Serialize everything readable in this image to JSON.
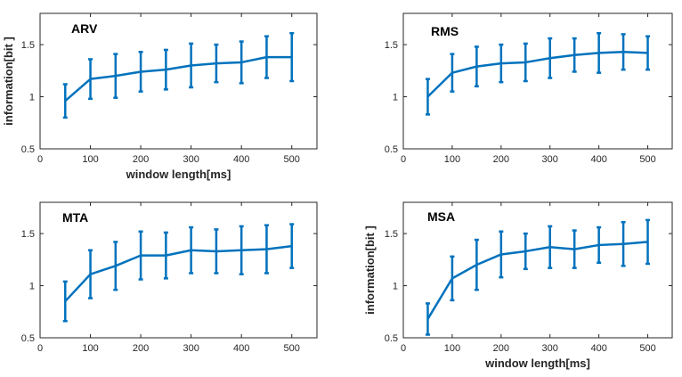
{
  "colors": {
    "line": "#0072BD",
    "axis": "#262626",
    "background": "#ffffff"
  },
  "chart_data": [
    {
      "type": "line",
      "title": "ARV",
      "xlabel": "window length[ms]",
      "ylabel": "information[bit ]",
      "xlim": [
        0,
        550
      ],
      "ylim": [
        0.5,
        1.8
      ],
      "xticks": [
        "0",
        "100",
        "200",
        "300",
        "400",
        "500"
      ],
      "yticks": [
        "0.5",
        "1",
        "1.5"
      ],
      "grid": false,
      "x": [
        50,
        100,
        150,
        200,
        250,
        300,
        350,
        400,
        450,
        500
      ],
      "y": [
        0.96,
        1.17,
        1.2,
        1.24,
        1.26,
        1.3,
        1.32,
        1.33,
        1.38,
        1.38
      ],
      "error": [
        0.16,
        0.19,
        0.21,
        0.19,
        0.19,
        0.21,
        0.18,
        0.2,
        0.2,
        0.23
      ]
    },
    {
      "type": "line",
      "title": "RMS",
      "xlabel": "",
      "ylabel": "",
      "xlim": [
        0,
        550
      ],
      "ylim": [
        0.5,
        1.8
      ],
      "xticks": [
        "0",
        "100",
        "200",
        "300",
        "400",
        "500"
      ],
      "yticks": [
        "0.5",
        "1",
        "1.5"
      ],
      "grid": false,
      "x": [
        50,
        100,
        150,
        200,
        250,
        300,
        350,
        400,
        450,
        500
      ],
      "y": [
        1.0,
        1.23,
        1.29,
        1.32,
        1.33,
        1.37,
        1.4,
        1.42,
        1.43,
        1.42
      ],
      "error": [
        0.17,
        0.18,
        0.19,
        0.18,
        0.18,
        0.19,
        0.16,
        0.19,
        0.17,
        0.16
      ]
    },
    {
      "type": "line",
      "title": "MTA",
      "xlabel": "",
      "ylabel": "",
      "xlim": [
        0,
        550
      ],
      "ylim": [
        0.5,
        1.8
      ],
      "xticks": [
        "0",
        "100",
        "200",
        "300",
        "400",
        "500"
      ],
      "yticks": [
        "0.5",
        "1",
        "1.5"
      ],
      "grid": false,
      "x": [
        50,
        100,
        150,
        200,
        250,
        300,
        350,
        400,
        450,
        500
      ],
      "y": [
        0.85,
        1.11,
        1.19,
        1.29,
        1.29,
        1.34,
        1.33,
        1.34,
        1.35,
        1.38
      ],
      "error": [
        0.19,
        0.23,
        0.23,
        0.23,
        0.22,
        0.22,
        0.21,
        0.23,
        0.23,
        0.21
      ]
    },
    {
      "type": "line",
      "title": "MSA",
      "xlabel": "window length[ms]",
      "ylabel": "information[bit ]",
      "xlim": [
        0,
        550
      ],
      "ylim": [
        0.5,
        1.8
      ],
      "xticks": [
        "0",
        "100",
        "200",
        "300",
        "400",
        "500"
      ],
      "yticks": [
        "0.5",
        "1",
        "1.5"
      ],
      "grid": false,
      "x": [
        50,
        100,
        150,
        200,
        250,
        300,
        350,
        400,
        450,
        500
      ],
      "y": [
        0.68,
        1.07,
        1.2,
        1.3,
        1.33,
        1.37,
        1.35,
        1.39,
        1.4,
        1.42
      ],
      "error": [
        0.15,
        0.21,
        0.24,
        0.22,
        0.17,
        0.2,
        0.18,
        0.17,
        0.21,
        0.21
      ]
    }
  ]
}
